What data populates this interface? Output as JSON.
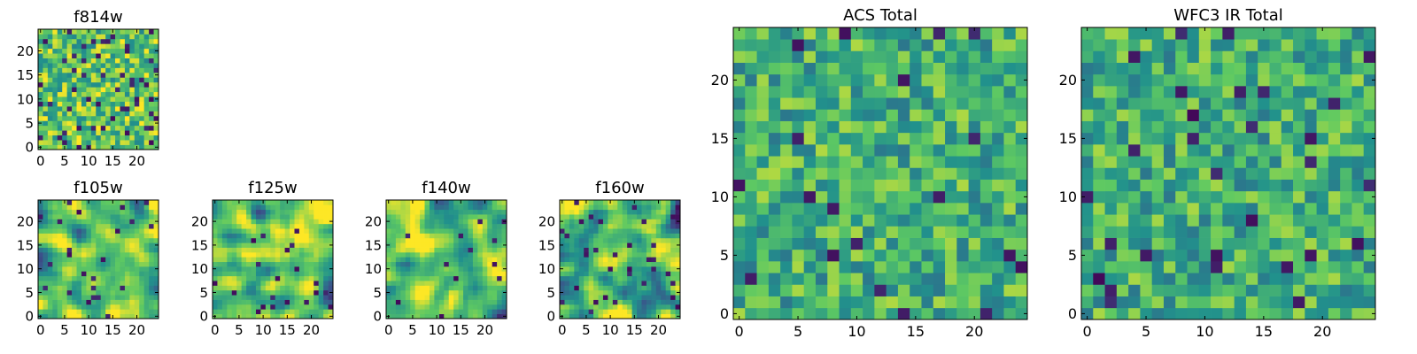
{
  "colormap": [
    "#440154",
    "#3b528b",
    "#21918c",
    "#5ec962",
    "#fde725"
  ],
  "chart_data": [
    {
      "type": "heatmap",
      "title": "f814w",
      "grid_size": 25,
      "xlim": [
        0,
        24
      ],
      "ylim": [
        0,
        24
      ],
      "xticks": [
        "0",
        "5",
        "10",
        "15",
        "20"
      ],
      "yticks": [
        "0",
        "5",
        "10",
        "15",
        "20"
      ],
      "seed": 11,
      "mean": 0.72,
      "spread": 0.16,
      "smooth": 0,
      "dark_fraction": 0.08
    },
    {
      "type": "heatmap",
      "title": "f105w",
      "grid_size": 25,
      "xlim": [
        0,
        24
      ],
      "ylim": [
        0,
        24
      ],
      "xticks": [
        "0",
        "5",
        "10",
        "15",
        "20"
      ],
      "yticks": [
        "0",
        "5",
        "10",
        "15",
        "20"
      ],
      "seed": 23,
      "mean": 0.72,
      "spread": 0.16,
      "smooth": 2,
      "dark_fraction": 0.04
    },
    {
      "type": "heatmap",
      "title": "f125w",
      "grid_size": 25,
      "xlim": [
        0,
        24
      ],
      "ylim": [
        0,
        24
      ],
      "xticks": [
        "0",
        "5",
        "10",
        "15",
        "20"
      ],
      "yticks": [
        "0",
        "5",
        "10",
        "15",
        "20"
      ],
      "seed": 37,
      "mean": 0.74,
      "spread": 0.17,
      "smooth": 2,
      "dark_fraction": 0.04
    },
    {
      "type": "heatmap",
      "title": "f140w",
      "grid_size": 25,
      "xlim": [
        0,
        24
      ],
      "ylim": [
        0,
        24
      ],
      "xticks": [
        "0",
        "5",
        "10",
        "15",
        "20"
      ],
      "yticks": [
        "0",
        "5",
        "10",
        "15",
        "20"
      ],
      "seed": 41,
      "mean": 0.72,
      "spread": 0.17,
      "smooth": 2,
      "dark_fraction": 0.03
    },
    {
      "type": "heatmap",
      "title": "f160w",
      "grid_size": 25,
      "xlim": [
        0,
        24
      ],
      "ylim": [
        0,
        24
      ],
      "xticks": [
        "0",
        "5",
        "10",
        "15",
        "20"
      ],
      "yticks": [
        "0",
        "5",
        "10",
        "15",
        "20"
      ],
      "seed": 53,
      "mean": 0.66,
      "spread": 0.19,
      "smooth": 2,
      "dark_fraction": 0.05
    },
    {
      "type": "heatmap",
      "title": "ACS Total",
      "grid_size": 25,
      "xlim": [
        0,
        24
      ],
      "ylim": [
        0,
        24
      ],
      "xticks": [
        "0",
        "5",
        "10",
        "15",
        "20"
      ],
      "yticks": [
        "0",
        "5",
        "10",
        "15",
        "20"
      ],
      "seed": 67,
      "mean": 0.64,
      "spread": 0.14,
      "smooth": 0,
      "dark_fraction": 0.045
    },
    {
      "type": "heatmap",
      "title": "WFC3 IR Total",
      "grid_size": 25,
      "xlim": [
        0,
        24
      ],
      "ylim": [
        0,
        24
      ],
      "xticks": [
        "0",
        "5",
        "10",
        "15",
        "20"
      ],
      "yticks": [
        "0",
        "5",
        "10",
        "15",
        "20"
      ],
      "seed": 79,
      "mean": 0.63,
      "spread": 0.14,
      "smooth": 0,
      "dark_fraction": 0.045
    }
  ]
}
